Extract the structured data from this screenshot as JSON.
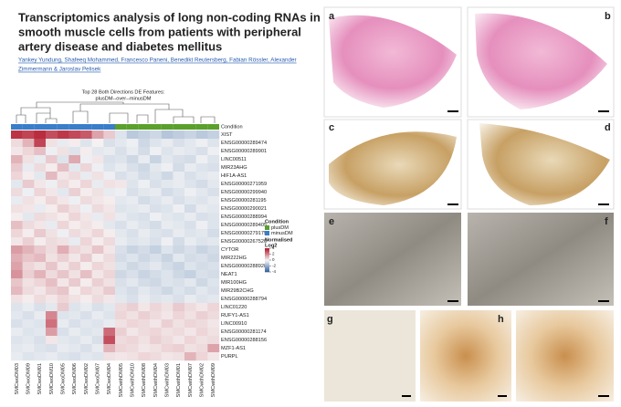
{
  "paper": {
    "title_lines": [
      "Transcriptomics analysis of long non-coding RNAs in",
      "smooth muscle cells from patients with peripheral",
      "artery disease and diabetes mellitus"
    ],
    "author_lines": [
      "Yankey Yundung, Shafeeq Mohammed, Francesco Paneni, Benedikt Reutersberg, Fabian Rössler, Alexander",
      "Zimmermann & Jaroslav Pelisek"
    ]
  },
  "chart_data": {
    "type": "heatmap",
    "title_lines": [
      "Top 28 Both Directions DE Features:",
      "plusDM--over--minusDM"
    ],
    "condition_label": "Condition",
    "legend_title": "Condition",
    "conditions": [
      {
        "name": "plusDM",
        "color": "#5aa02c"
      },
      {
        "name": "minusDM",
        "color": "#3a7dc9"
      }
    ],
    "column_conditions": [
      1,
      1,
      1,
      1,
      1,
      1,
      1,
      1,
      1,
      0,
      0,
      0,
      0,
      0,
      0,
      0,
      0,
      0
    ],
    "scale_title_lines": [
      "Normalised",
      "Log2"
    ],
    "colors": [
      "#2c5d9e",
      "#f7f7f7",
      "#b2172b"
    ],
    "clim": [
      -4,
      4
    ],
    "cticks": [
      4,
      2,
      0,
      -2,
      -4
    ],
    "columns": [
      "SMCwoDM03",
      "SMCwoDM09",
      "SMCwoDM01",
      "SMCwoDM10",
      "SMCwoDM05",
      "SMCwoDM06",
      "SMCwoDM02",
      "SMCwoDM07",
      "SMCwoDM04",
      "SMCwithDM05",
      "SMCwithDM10",
      "SMCwithDM08",
      "SMCwithDM04",
      "SMCwithDM03",
      "SMCwithDM01",
      "SMCwithDM07",
      "SMCwithDM02",
      "SMCwithDM09"
    ],
    "rows": [
      "XIST",
      "ENSG00000289474",
      "ENSG00000289901",
      "LINC00511",
      "MIR23AHG",
      "HIF1A-AS1",
      "ENSG00000271959",
      "ENSG00000299940",
      "ENSG00000281195",
      "ENSG00000290021",
      "ENSG00000288994",
      "ENSG00000289405",
      "ENSG00000279175",
      "ENSG00000267520",
      "CYTOR",
      "MIR222HG",
      "ENSG00000288928",
      "NEAT1",
      "MIR100HG",
      "MIR29B2CHG",
      "ENSG00000288794",
      "LINC01220",
      "RUFY1-AS1",
      "LINC00910",
      "ENSG00000281174",
      "ENSG00000288156",
      "MZF1-AS1",
      "PURPL"
    ],
    "values": [
      [
        3.5,
        3.2,
        3.6,
        3.0,
        3.4,
        3.1,
        2.8,
        1.5,
        0.8,
        -0.5,
        -1.2,
        -1.0,
        -0.8,
        -1.3,
        -1.1,
        -0.9,
        -1.2,
        -1.0
      ],
      [
        0.5,
        1.2,
        3.2,
        0.4,
        -0.3,
        0.2,
        -0.5,
        0.1,
        -0.6,
        -0.4,
        -0.2,
        -0.8,
        -0.5,
        -0.3,
        -0.6,
        -0.4,
        -0.2,
        -0.5
      ],
      [
        0.3,
        0.6,
        1.0,
        -0.2,
        0.4,
        -0.5,
        0.2,
        -0.4,
        -0.3,
        -0.6,
        -0.3,
        -0.7,
        -0.2,
        -0.5,
        -0.3,
        -0.4,
        -0.6,
        -0.2
      ],
      [
        1.2,
        0.4,
        -0.3,
        0.8,
        -0.5,
        1.4,
        -0.2,
        0.3,
        -0.6,
        -0.5,
        -0.8,
        -0.3,
        -0.9,
        -0.4,
        -0.6,
        -0.7,
        -0.2,
        -0.5
      ],
      [
        0.8,
        -0.3,
        0.5,
        0.2,
        1.0,
        -0.4,
        0.6,
        -0.2,
        -0.5,
        -0.3,
        -0.6,
        -0.8,
        -0.4,
        -0.2,
        -0.7,
        -0.3,
        -0.5,
        -0.6
      ],
      [
        0.6,
        0.2,
        -0.4,
        1.1,
        0.3,
        0.5,
        -0.3,
        0.4,
        -0.2,
        -0.6,
        -0.4,
        -0.7,
        -0.5,
        -0.8,
        -0.3,
        -0.6,
        -0.4,
        -0.3
      ],
      [
        -0.4,
        0.8,
        0.3,
        -0.2,
        0.5,
        0.2,
        0.6,
        -0.3,
        0.4,
        0.3,
        -0.5,
        -0.2,
        -0.6,
        -0.4,
        -0.3,
        -0.5,
        -0.7,
        -0.4
      ],
      [
        0.5,
        -0.2,
        0.6,
        0.3,
        -0.4,
        0.7,
        0.2,
        0.4,
        -0.3,
        -0.2,
        -0.6,
        -0.4,
        -0.3,
        -0.7,
        -0.5,
        -0.2,
        -0.4,
        -0.6
      ],
      [
        -0.3,
        0.4,
        0.2,
        0.6,
        0.3,
        -0.2,
        0.5,
        0.3,
        0.2,
        -0.4,
        -0.3,
        -0.7,
        -0.5,
        -0.3,
        -0.6,
        -0.4,
        -0.5,
        -0.3
      ],
      [
        0.4,
        0.3,
        -0.3,
        0.2,
        0.7,
        0.4,
        -0.2,
        0.5,
        0.3,
        -0.5,
        -0.4,
        -0.3,
        -0.6,
        -0.5,
        -0.2,
        -0.7,
        -0.3,
        -0.4
      ],
      [
        0.2,
        -0.4,
        0.5,
        0.4,
        0.2,
        0.6,
        0.3,
        -0.3,
        0.4,
        -0.3,
        -0.5,
        -0.6,
        -0.2,
        -0.4,
        -0.5,
        -0.3,
        -0.6,
        -0.5
      ],
      [
        1.0,
        0.5,
        0.3,
        -0.3,
        0.6,
        0.2,
        0.4,
        0.2,
        -0.4,
        -0.6,
        -0.3,
        -0.5,
        -0.7,
        -0.3,
        -0.4,
        -0.6,
        -0.2,
        -0.5
      ],
      [
        0.6,
        0.2,
        0.8,
        0.4,
        -0.2,
        0.5,
        0.3,
        0.6,
        0.2,
        -0.4,
        -0.6,
        -0.3,
        -0.5,
        -0.6,
        -0.3,
        -0.5,
        -0.4,
        -0.7
      ],
      [
        0.3,
        0.7,
        0.2,
        0.5,
        0.4,
        -0.3,
        0.6,
        0.2,
        0.5,
        -0.3,
        -0.5,
        -0.4,
        -0.6,
        -0.2,
        -0.7,
        -0.3,
        -0.5,
        -0.4
      ],
      [
        1.6,
        1.2,
        0.8,
        0.5,
        1.3,
        0.6,
        0.4,
        0.9,
        0.3,
        -0.6,
        -0.9,
        -0.7,
        -1.0,
        -0.5,
        -0.8,
        -0.6,
        -0.9,
        -0.7
      ],
      [
        1.3,
        0.9,
        1.1,
        0.4,
        0.7,
        0.3,
        0.8,
        0.2,
        0.5,
        -0.7,
        -0.5,
        -0.8,
        -0.6,
        -0.9,
        -0.4,
        -0.7,
        -0.6,
        -0.8
      ],
      [
        1.5,
        0.6,
        0.4,
        0.9,
        0.3,
        0.7,
        0.2,
        0.6,
        0.4,
        -0.5,
        -0.8,
        -0.6,
        -0.4,
        -0.7,
        -0.9,
        -0.5,
        -0.7,
        -0.6
      ],
      [
        1.8,
        0.7,
        1.2,
        0.5,
        0.9,
        0.4,
        1.0,
        0.3,
        0.6,
        -0.8,
        -0.6,
        -0.9,
        -0.7,
        -0.5,
        -0.8,
        -1.0,
        -0.6,
        -0.7
      ],
      [
        0.9,
        0.4,
        0.6,
        1.0,
        0.3,
        0.8,
        0.2,
        0.7,
        0.4,
        -0.6,
        -0.4,
        -0.7,
        -0.8,
        -0.5,
        -0.6,
        -0.4,
        -0.8,
        -0.5
      ],
      [
        1.1,
        0.5,
        0.3,
        0.7,
        0.9,
        0.2,
        0.6,
        0.4,
        0.8,
        -0.5,
        -0.7,
        -0.4,
        -0.6,
        -0.8,
        -0.5,
        -0.7,
        -0.4,
        -0.6
      ],
      [
        0.4,
        0.2,
        0.5,
        0.3,
        0.6,
        0.4,
        0.2,
        0.5,
        0.3,
        -0.4,
        -0.6,
        -0.3,
        -0.5,
        -0.4,
        -0.6,
        -0.3,
        -0.5,
        -0.4
      ],
      [
        -0.5,
        -0.3,
        -0.6,
        -0.4,
        0.8,
        -0.5,
        -0.3,
        -0.6,
        -0.4,
        0.5,
        0.7,
        0.3,
        0.6,
        0.4,
        0.8,
        0.5,
        0.3,
        0.6
      ],
      [
        -0.4,
        -0.6,
        -0.3,
        2.0,
        -0.5,
        -0.4,
        -0.6,
        -0.3,
        -0.5,
        0.6,
        0.4,
        0.7,
        0.5,
        0.3,
        0.6,
        0.4,
        0.7,
        0.5
      ],
      [
        -0.6,
        -0.4,
        -0.5,
        2.4,
        -0.3,
        -0.6,
        -0.4,
        -0.5,
        -0.3,
        0.4,
        0.6,
        0.5,
        0.3,
        0.7,
        0.4,
        0.6,
        0.5,
        0.3
      ],
      [
        -0.3,
        -0.5,
        -0.4,
        1.6,
        -0.6,
        -0.3,
        -0.5,
        -0.4,
        2.5,
        0.7,
        0.3,
        0.5,
        0.6,
        0.4,
        0.5,
        0.3,
        0.6,
        0.4
      ],
      [
        -0.5,
        -0.4,
        -0.6,
        0.3,
        -0.4,
        -0.5,
        -0.3,
        -0.6,
        3.0,
        0.5,
        0.6,
        0.4,
        0.7,
        0.5,
        0.3,
        0.6,
        0.4,
        0.5
      ],
      [
        -0.4,
        -0.3,
        -0.5,
        -0.6,
        -0.3,
        -0.4,
        -0.6,
        -0.3,
        1.2,
        0.6,
        0.5,
        0.3,
        0.4,
        0.6,
        0.7,
        0.4,
        0.5,
        1.5
      ],
      [
        -0.3,
        -0.5,
        -0.4,
        -0.3,
        -0.5,
        -0.6,
        -0.4,
        -0.5,
        0.4,
        0.3,
        0.4,
        0.6,
        0.5,
        0.3,
        0.4,
        1.2,
        0.6,
        0.3
      ]
    ]
  },
  "figure": {
    "panel_labels": [
      "a",
      "b",
      "c",
      "d",
      "e",
      "f",
      "g",
      "h"
    ]
  }
}
